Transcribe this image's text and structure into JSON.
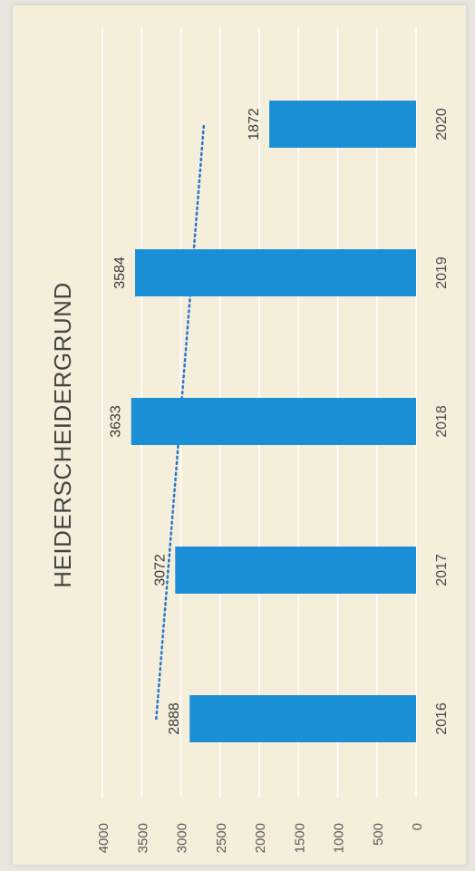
{
  "chart_data": {
    "type": "bar",
    "title": "HEIDERSCHEIDERGRUND",
    "categories": [
      "2016",
      "2017",
      "2018",
      "2019",
      "2020"
    ],
    "values": [
      2888,
      3072,
      3633,
      3584,
      1872
    ],
    "data_labels": [
      "2888",
      "3072",
      "3633",
      "3584",
      "1872"
    ],
    "ylim": [
      0,
      4000
    ],
    "yticks": [
      "0",
      "500",
      "1000",
      "1500",
      "2000",
      "2500",
      "3000",
      "3500",
      "4000"
    ],
    "grid": true,
    "trendline": {
      "style": "dotted",
      "type": "linear"
    },
    "orientation": "rotated 90° counter-clockwise"
  },
  "colors": {
    "bar": "#1a8fd6",
    "trendline": "#2a74c8",
    "grid": "#ffffff",
    "background": "#f4eedb"
  }
}
